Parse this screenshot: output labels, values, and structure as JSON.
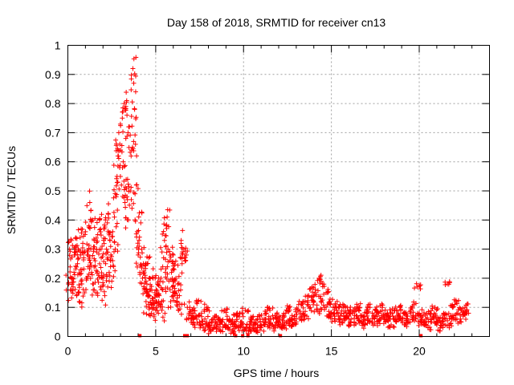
{
  "chart_data": {
    "type": "scatter",
    "title": "Day 158 of 2018, SRMTID for receiver cn13",
    "xlabel": "GPS time / hours",
    "ylabel": "SRMTID / TECUs",
    "xlim": [
      0,
      24
    ],
    "ylim": [
      0,
      1
    ],
    "xticks": [
      0,
      5,
      10,
      15,
      20
    ],
    "xtick_labels": [
      "0",
      "5",
      "10",
      "15",
      "20"
    ],
    "yticks": [
      0,
      0.1,
      0.2,
      0.3,
      0.4,
      0.5,
      0.6,
      0.7,
      0.8,
      0.9,
      1
    ],
    "ytick_labels": [
      "0",
      "0.1",
      "0.2",
      "0.3",
      "0.4",
      "0.5",
      "0.6",
      "0.7",
      "0.8",
      "0.9",
      "1"
    ],
    "grid": true,
    "marker": "plus",
    "series": [
      {
        "name": "SRMTID",
        "color": "#ff0000",
        "points": [
          [
            0.05,
            0.18
          ],
          [
            0.1,
            0.3
          ],
          [
            0.15,
            0.16
          ],
          [
            0.2,
            0.33
          ],
          [
            0.25,
            0.2
          ],
          [
            0.3,
            0.17
          ],
          [
            0.35,
            0.22
          ],
          [
            0.4,
            0.28
          ],
          [
            0.45,
            0.31
          ],
          [
            0.5,
            0.14
          ],
          [
            0.55,
            0.25
          ],
          [
            0.6,
            0.3
          ],
          [
            0.65,
            0.12
          ],
          [
            0.7,
            0.34
          ],
          [
            0.75,
            0.19
          ],
          [
            0.8,
            0.23
          ],
          [
            0.85,
            0.32
          ],
          [
            0.9,
            0.27
          ],
          [
            0.95,
            0.15
          ],
          [
            1.0,
            0.36
          ],
          [
            1.05,
            0.2
          ],
          [
            1.1,
            0.28
          ],
          [
            1.15,
            0.24
          ],
          [
            1.2,
            0.38
          ],
          [
            1.25,
            0.46
          ],
          [
            1.3,
            0.3
          ],
          [
            1.35,
            0.22
          ],
          [
            1.4,
            0.4
          ],
          [
            1.45,
            0.18
          ],
          [
            1.5,
            0.33
          ],
          [
            1.55,
            0.26
          ],
          [
            1.6,
            0.15
          ],
          [
            1.65,
            0.29
          ],
          [
            1.7,
            0.35
          ],
          [
            1.75,
            0.21
          ],
          [
            1.8,
            0.4
          ],
          [
            1.85,
            0.17
          ],
          [
            1.9,
            0.27
          ],
          [
            1.95,
            0.31
          ],
          [
            2.0,
            0.2
          ],
          [
            2.05,
            0.37
          ],
          [
            2.1,
            0.14
          ],
          [
            2.15,
            0.25
          ],
          [
            2.2,
            0.3
          ],
          [
            2.25,
            0.39
          ],
          [
            2.3,
            0.42
          ],
          [
            2.35,
            0.22
          ],
          [
            2.4,
            0.33
          ],
          [
            2.45,
            0.28
          ],
          [
            2.5,
            0.19
          ],
          [
            2.55,
            0.36
          ],
          [
            2.6,
            0.24
          ],
          [
            2.65,
            0.41
          ],
          [
            2.7,
            0.3
          ],
          [
            2.75,
            0.48
          ],
          [
            2.8,
            0.55
          ],
          [
            2.85,
            0.62
          ],
          [
            2.9,
            0.7
          ],
          [
            2.95,
            0.58
          ],
          [
            3.0,
            0.64
          ],
          [
            3.05,
            0.52
          ],
          [
            3.1,
            0.75
          ],
          [
            3.15,
            0.6
          ],
          [
            3.2,
            0.8
          ],
          [
            3.25,
            0.46
          ],
          [
            3.3,
            0.68
          ],
          [
            3.35,
            0.81
          ],
          [
            3.4,
            0.54
          ],
          [
            3.45,
            0.4
          ],
          [
            3.5,
            0.72
          ],
          [
            3.55,
            0.5
          ],
          [
            3.6,
            0.62
          ],
          [
            3.65,
            0.44
          ],
          [
            3.7,
            0.92
          ],
          [
            3.75,
            0.87
          ],
          [
            3.8,
            0.78
          ],
          [
            3.85,
            0.66
          ],
          [
            3.9,
            0.52
          ],
          [
            3.95,
            0.36
          ],
          [
            4.0,
            0.28
          ],
          [
            4.05,
            0.33
          ],
          [
            4.1,
            0.22
          ],
          [
            4.15,
            0.39
          ],
          [
            4.2,
            0.3
          ],
          [
            4.25,
            0.2
          ],
          [
            4.3,
            0.25
          ],
          [
            4.35,
            0.16
          ],
          [
            4.4,
            0.21
          ],
          [
            4.45,
            0.12
          ],
          [
            4.5,
            0.18
          ],
          [
            4.55,
            0.14
          ],
          [
            4.6,
            0.27
          ],
          [
            4.65,
            0.1
          ],
          [
            4.7,
            0.16
          ],
          [
            4.75,
            0.08
          ],
          [
            4.8,
            0.13
          ],
          [
            4.85,
            0.2
          ],
          [
            4.9,
            0.1
          ],
          [
            4.95,
            0.15
          ],
          [
            5.0,
            0.09
          ],
          [
            5.05,
            0.12
          ],
          [
            5.1,
            0.18
          ],
          [
            5.15,
            0.08
          ],
          [
            5.2,
            0.14
          ],
          [
            5.25,
            0.11
          ],
          [
            5.3,
            0.2
          ],
          [
            5.35,
            0.09
          ],
          [
            5.4,
            0.16
          ],
          [
            5.45,
            0.27
          ],
          [
            5.5,
            0.33
          ],
          [
            5.55,
            0.22
          ],
          [
            5.6,
            0.38
          ],
          [
            5.65,
            0.41
          ],
          [
            5.7,
            0.3
          ],
          [
            5.75,
            0.19
          ],
          [
            5.8,
            0.26
          ],
          [
            5.85,
            0.12
          ],
          [
            5.9,
            0.22
          ],
          [
            5.95,
            0.17
          ],
          [
            6.0,
            0.28
          ],
          [
            6.05,
            0.23
          ],
          [
            6.1,
            0.15
          ],
          [
            6.15,
            0.2
          ],
          [
            6.2,
            0.12
          ],
          [
            6.25,
            0.18
          ],
          [
            6.3,
            0.09
          ],
          [
            6.35,
            0.14
          ],
          [
            6.4,
            0.27
          ],
          [
            6.45,
            0.33
          ],
          [
            6.5,
            0.25
          ],
          [
            6.6,
            0.3
          ],
          [
            6.7,
            0.26
          ],
          [
            6.8,
            0.1
          ],
          [
            6.9,
            0.08
          ],
          [
            7.0,
            0.06
          ],
          [
            7.1,
            0.09
          ],
          [
            7.2,
            0.04
          ],
          [
            7.3,
            0.07
          ],
          [
            7.4,
            0.12
          ],
          [
            7.5,
            0.05
          ],
          [
            7.6,
            0.08
          ],
          [
            7.7,
            0.03
          ],
          [
            7.8,
            0.06
          ],
          [
            7.9,
            0.1
          ],
          [
            8.0,
            0.04
          ],
          [
            8.1,
            0.02
          ],
          [
            8.2,
            0.05
          ],
          [
            8.3,
            0.03
          ],
          [
            8.4,
            0.07
          ],
          [
            8.5,
            0.04
          ],
          [
            8.6,
            0.06
          ],
          [
            8.7,
            0.02
          ],
          [
            8.8,
            0.05
          ],
          [
            8.9,
            0.09
          ],
          [
            9.0,
            0.04
          ],
          [
            9.1,
            0.03
          ],
          [
            9.2,
            0.06
          ],
          [
            9.3,
            0.05
          ],
          [
            9.4,
            0.02
          ],
          [
            9.5,
            0.04
          ],
          [
            9.6,
            0.07
          ],
          [
            9.7,
            0.03
          ],
          [
            9.8,
            0.08
          ],
          [
            9.9,
            0.05
          ],
          [
            10.0,
            0.03
          ],
          [
            10.1,
            0.09
          ],
          [
            10.2,
            0.04
          ],
          [
            10.3,
            0.02
          ],
          [
            10.4,
            0.06
          ],
          [
            10.5,
            0.03
          ],
          [
            10.6,
            0.05
          ],
          [
            10.7,
            0.02
          ],
          [
            10.8,
            0.04
          ],
          [
            10.9,
            0.07
          ],
          [
            11.0,
            0.03
          ],
          [
            11.1,
            0.06
          ],
          [
            11.2,
            0.04
          ],
          [
            11.3,
            0.08
          ],
          [
            11.4,
            0.05
          ],
          [
            11.5,
            0.09
          ],
          [
            11.6,
            0.04
          ],
          [
            11.7,
            0.06
          ],
          [
            11.8,
            0.03
          ],
          [
            11.9,
            0.05
          ],
          [
            12.0,
            0.07
          ],
          [
            12.1,
            0.04
          ],
          [
            12.2,
            0.06
          ],
          [
            12.3,
            0.03
          ],
          [
            12.4,
            0.08
          ],
          [
            12.5,
            0.05
          ],
          [
            12.6,
            0.1
          ],
          [
            12.7,
            0.06
          ],
          [
            12.8,
            0.04
          ],
          [
            12.9,
            0.07
          ],
          [
            13.0,
            0.05
          ],
          [
            13.1,
            0.09
          ],
          [
            13.2,
            0.06
          ],
          [
            13.3,
            0.11
          ],
          [
            13.4,
            0.08
          ],
          [
            13.5,
            0.12
          ],
          [
            13.6,
            0.07
          ],
          [
            13.7,
            0.14
          ],
          [
            13.8,
            0.1
          ],
          [
            13.9,
            0.17
          ],
          [
            14.0,
            0.12
          ],
          [
            14.1,
            0.15
          ],
          [
            14.2,
            0.09
          ],
          [
            14.3,
            0.2
          ],
          [
            14.4,
            0.13
          ],
          [
            14.5,
            0.18
          ],
          [
            14.6,
            0.1
          ],
          [
            14.7,
            0.15
          ],
          [
            14.8,
            0.07
          ],
          [
            14.9,
            0.12
          ],
          [
            15.0,
            0.08
          ],
          [
            15.1,
            0.1
          ],
          [
            15.2,
            0.06
          ],
          [
            15.3,
            0.09
          ],
          [
            15.4,
            0.07
          ],
          [
            15.5,
            0.11
          ],
          [
            15.6,
            0.05
          ],
          [
            15.7,
            0.08
          ],
          [
            15.8,
            0.06
          ],
          [
            15.9,
            0.1
          ],
          [
            16.0,
            0.07
          ],
          [
            16.1,
            0.04
          ],
          [
            16.2,
            0.08
          ],
          [
            16.3,
            0.05
          ],
          [
            16.4,
            0.09
          ],
          [
            16.5,
            0.06
          ],
          [
            16.6,
            0.1
          ],
          [
            16.7,
            0.05
          ],
          [
            16.8,
            0.07
          ],
          [
            16.9,
            0.04
          ],
          [
            17.0,
            0.08
          ],
          [
            17.1,
            0.06
          ],
          [
            17.2,
            0.1
          ],
          [
            17.3,
            0.05
          ],
          [
            17.4,
            0.07
          ],
          [
            17.5,
            0.09
          ],
          [
            17.6,
            0.05
          ],
          [
            17.7,
            0.08
          ],
          [
            17.8,
            0.06
          ],
          [
            17.9,
            0.1
          ],
          [
            18.0,
            0.07
          ],
          [
            18.1,
            0.05
          ],
          [
            18.2,
            0.08
          ],
          [
            18.3,
            0.06
          ],
          [
            18.4,
            0.04
          ],
          [
            18.5,
            0.07
          ],
          [
            18.6,
            0.09
          ],
          [
            18.7,
            0.05
          ],
          [
            18.8,
            0.07
          ],
          [
            18.9,
            0.1
          ],
          [
            19.0,
            0.06
          ],
          [
            19.1,
            0.08
          ],
          [
            19.2,
            0.04
          ],
          [
            19.3,
            0.07
          ],
          [
            19.4,
            0.05
          ],
          [
            19.5,
            0.09
          ],
          [
            19.6,
            0.06
          ],
          [
            19.7,
            0.11
          ],
          [
            19.8,
            0.07
          ],
          [
            19.9,
            0.17
          ],
          [
            20.0,
            0.08
          ],
          [
            20.1,
            0.05
          ],
          [
            20.2,
            0.07
          ],
          [
            20.3,
            0.04
          ],
          [
            20.4,
            0.06
          ],
          [
            20.5,
            0.03
          ],
          [
            20.6,
            0.08
          ],
          [
            20.7,
            0.05
          ],
          [
            20.8,
            0.07
          ],
          [
            20.9,
            0.1
          ],
          [
            21.0,
            0.04
          ],
          [
            21.1,
            0.06
          ],
          [
            21.2,
            0.03
          ],
          [
            21.3,
            0.05
          ],
          [
            21.4,
            0.08
          ],
          [
            21.5,
            0.06
          ],
          [
            21.6,
            0.18
          ],
          [
            21.7,
            0.04
          ],
          [
            21.8,
            0.07
          ],
          [
            21.9,
            0.1
          ],
          [
            22.0,
            0.06
          ],
          [
            22.1,
            0.12
          ],
          [
            22.2,
            0.08
          ],
          [
            22.3,
            0.05
          ],
          [
            22.4,
            0.09
          ],
          [
            22.5,
            0.07
          ],
          [
            22.6,
            0.1
          ],
          [
            22.7,
            0.08
          ]
        ]
      }
    ],
    "zero_markers": [
      4.1,
      6.65,
      6.8,
      9.55,
      9.95,
      10.25,
      12.1,
      20.1
    ]
  }
}
